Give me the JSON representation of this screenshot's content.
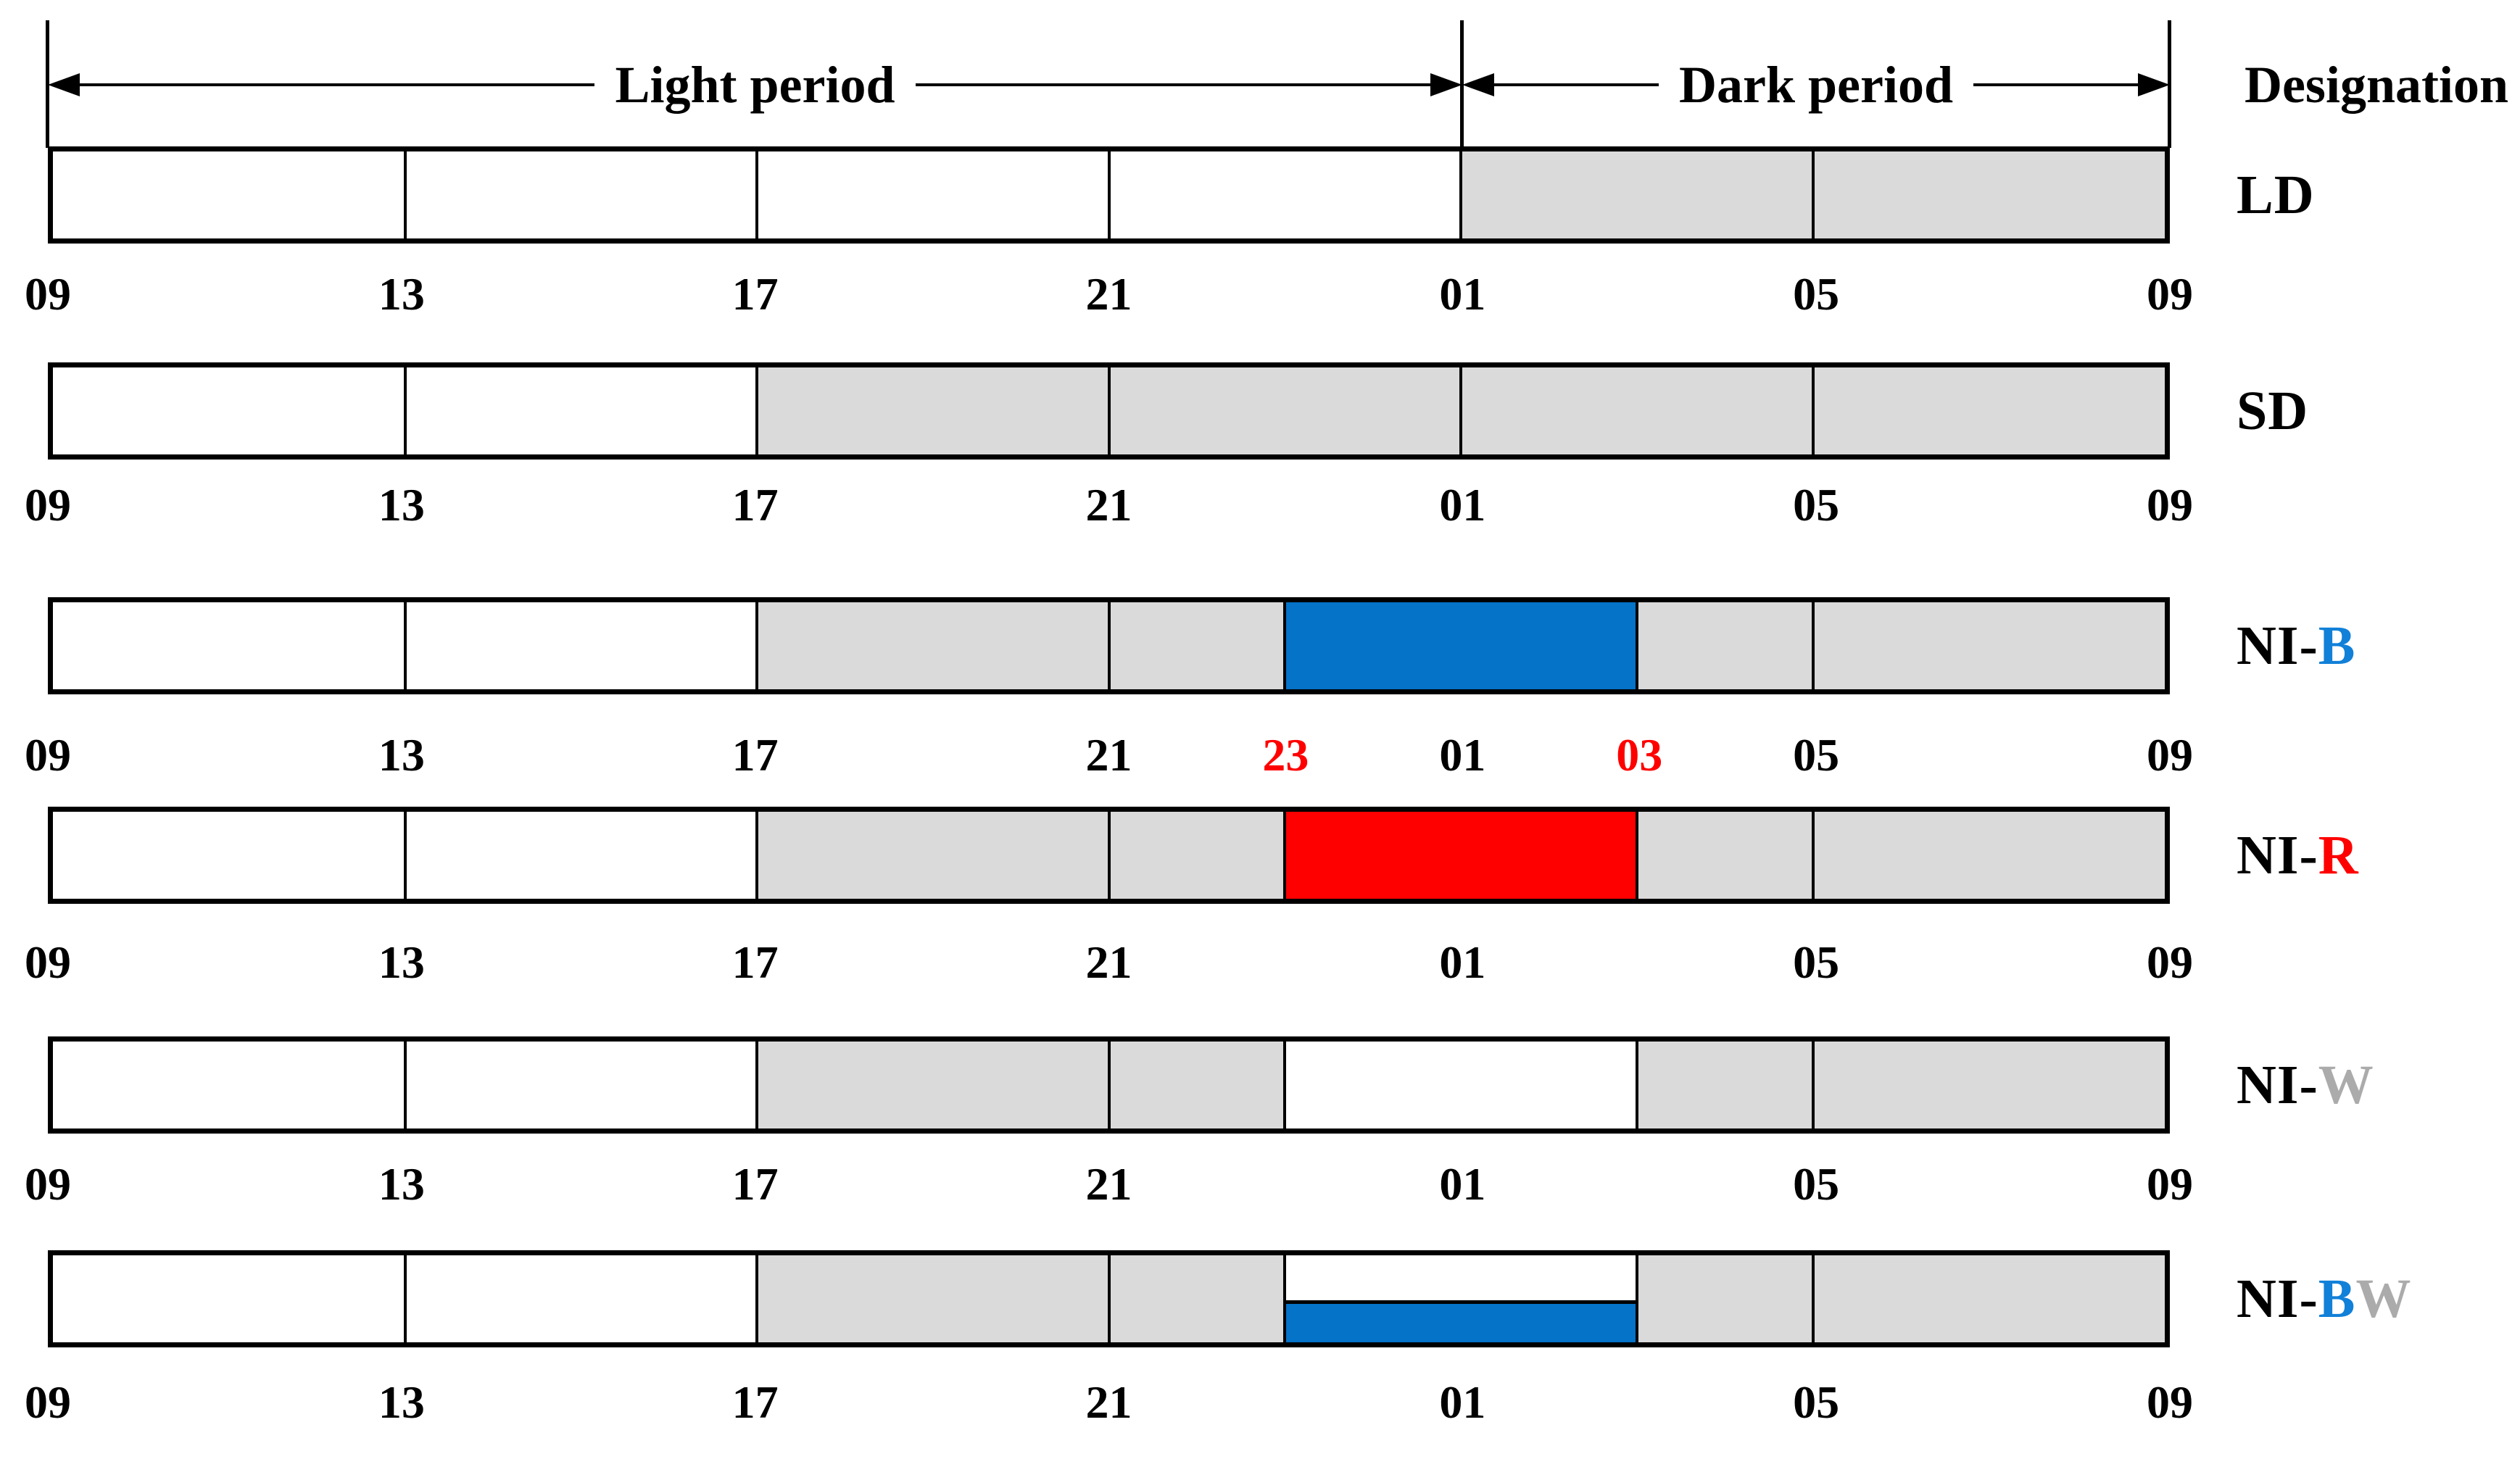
{
  "header": {
    "light_period_label": "Light period",
    "dark_period_label": "Dark period",
    "designation_label": "Designation"
  },
  "palette": {
    "fill_white": "#FFFFFF",
    "fill_gray": "#DADADA",
    "fill_blue": "#0473C8",
    "fill_red": "#FF0000",
    "split_top": "#FFFFFF",
    "split_bottom": "#0473C8",
    "text_black": "#000000",
    "text_blue": "#1180D8",
    "text_red": "#FF0000",
    "text_gray": "#ABABAB",
    "line_black": "#000000"
  },
  "axis": {
    "start_hour_label": "09",
    "total_hours": 24,
    "light_hours": 16
  },
  "rows": [
    {
      "name": "LD",
      "designation": [
        {
          "text": "LD",
          "color": "text_black"
        }
      ],
      "segments": [
        {
          "start": 0,
          "end": 4,
          "fill": "fill_white"
        },
        {
          "start": 4,
          "end": 8,
          "fill": "fill_white"
        },
        {
          "start": 8,
          "end": 12,
          "fill": "fill_white"
        },
        {
          "start": 12,
          "end": 16,
          "fill": "fill_white"
        },
        {
          "start": 16,
          "end": 20,
          "fill": "fill_gray"
        },
        {
          "start": 20,
          "end": 24,
          "fill": "fill_gray"
        }
      ],
      "ticks": [
        {
          "label": "09",
          "hour": 0,
          "color": "text_black"
        },
        {
          "label": "13",
          "hour": 4,
          "color": "text_black"
        },
        {
          "label": "17",
          "hour": 8,
          "color": "text_black"
        },
        {
          "label": "21",
          "hour": 12,
          "color": "text_black"
        },
        {
          "label": "01",
          "hour": 16,
          "color": "text_black"
        },
        {
          "label": "05",
          "hour": 20,
          "color": "text_black"
        },
        {
          "label": "09",
          "hour": 24,
          "color": "text_black"
        }
      ]
    },
    {
      "name": "SD",
      "designation": [
        {
          "text": "SD",
          "color": "text_black"
        }
      ],
      "segments": [
        {
          "start": 0,
          "end": 4,
          "fill": "fill_white"
        },
        {
          "start": 4,
          "end": 8,
          "fill": "fill_white"
        },
        {
          "start": 8,
          "end": 12,
          "fill": "fill_gray"
        },
        {
          "start": 12,
          "end": 16,
          "fill": "fill_gray"
        },
        {
          "start": 16,
          "end": 20,
          "fill": "fill_gray"
        },
        {
          "start": 20,
          "end": 24,
          "fill": "fill_gray"
        }
      ],
      "ticks": [
        {
          "label": "09",
          "hour": 0,
          "color": "text_black"
        },
        {
          "label": "13",
          "hour": 4,
          "color": "text_black"
        },
        {
          "label": "17",
          "hour": 8,
          "color": "text_black"
        },
        {
          "label": "21",
          "hour": 12,
          "color": "text_black"
        },
        {
          "label": "01",
          "hour": 16,
          "color": "text_black"
        },
        {
          "label": "05",
          "hour": 20,
          "color": "text_black"
        },
        {
          "label": "09",
          "hour": 24,
          "color": "text_black"
        }
      ]
    },
    {
      "name": "NI-B",
      "designation": [
        {
          "text": "NI-",
          "color": "text_black"
        },
        {
          "text": "B",
          "color": "text_blue"
        }
      ],
      "segments": [
        {
          "start": 0,
          "end": 4,
          "fill": "fill_white"
        },
        {
          "start": 4,
          "end": 8,
          "fill": "fill_white"
        },
        {
          "start": 8,
          "end": 12,
          "fill": "fill_gray"
        },
        {
          "start": 12,
          "end": 14,
          "fill": "fill_gray"
        },
        {
          "start": 14,
          "end": 18,
          "fill": "fill_blue"
        },
        {
          "start": 18,
          "end": 20,
          "fill": "fill_gray"
        },
        {
          "start": 20,
          "end": 24,
          "fill": "fill_gray"
        }
      ],
      "ticks": [
        {
          "label": "09",
          "hour": 0,
          "color": "text_black"
        },
        {
          "label": "13",
          "hour": 4,
          "color": "text_black"
        },
        {
          "label": "17",
          "hour": 8,
          "color": "text_black"
        },
        {
          "label": "21",
          "hour": 12,
          "color": "text_black"
        },
        {
          "label": "23",
          "hour": 14,
          "color": "text_red"
        },
        {
          "label": "01",
          "hour": 16,
          "color": "text_black"
        },
        {
          "label": "03",
          "hour": 18,
          "color": "text_red"
        },
        {
          "label": "05",
          "hour": 20,
          "color": "text_black"
        },
        {
          "label": "09",
          "hour": 24,
          "color": "text_black"
        }
      ]
    },
    {
      "name": "NI-R",
      "designation": [
        {
          "text": "NI-",
          "color": "text_black"
        },
        {
          "text": "R",
          "color": "text_red"
        }
      ],
      "segments": [
        {
          "start": 0,
          "end": 4,
          "fill": "fill_white"
        },
        {
          "start": 4,
          "end": 8,
          "fill": "fill_white"
        },
        {
          "start": 8,
          "end": 12,
          "fill": "fill_gray"
        },
        {
          "start": 12,
          "end": 14,
          "fill": "fill_gray"
        },
        {
          "start": 14,
          "end": 18,
          "fill": "fill_red"
        },
        {
          "start": 18,
          "end": 20,
          "fill": "fill_gray"
        },
        {
          "start": 20,
          "end": 24,
          "fill": "fill_gray"
        }
      ],
      "ticks": [
        {
          "label": "09",
          "hour": 0,
          "color": "text_black"
        },
        {
          "label": "13",
          "hour": 4,
          "color": "text_black"
        },
        {
          "label": "17",
          "hour": 8,
          "color": "text_black"
        },
        {
          "label": "21",
          "hour": 12,
          "color": "text_black"
        },
        {
          "label": "01",
          "hour": 16,
          "color": "text_black"
        },
        {
          "label": "05",
          "hour": 20,
          "color": "text_black"
        },
        {
          "label": "09",
          "hour": 24,
          "color": "text_black"
        }
      ]
    },
    {
      "name": "NI-W",
      "designation": [
        {
          "text": "NI-",
          "color": "text_black"
        },
        {
          "text": "W",
          "color": "text_gray"
        }
      ],
      "segments": [
        {
          "start": 0,
          "end": 4,
          "fill": "fill_white"
        },
        {
          "start": 4,
          "end": 8,
          "fill": "fill_white"
        },
        {
          "start": 8,
          "end": 12,
          "fill": "fill_gray"
        },
        {
          "start": 12,
          "end": 14,
          "fill": "fill_gray"
        },
        {
          "start": 14,
          "end": 18,
          "fill": "fill_white"
        },
        {
          "start": 18,
          "end": 20,
          "fill": "fill_gray"
        },
        {
          "start": 20,
          "end": 24,
          "fill": "fill_gray"
        }
      ],
      "ticks": [
        {
          "label": "09",
          "hour": 0,
          "color": "text_black"
        },
        {
          "label": "13",
          "hour": 4,
          "color": "text_black"
        },
        {
          "label": "17",
          "hour": 8,
          "color": "text_black"
        },
        {
          "label": "21",
          "hour": 12,
          "color": "text_black"
        },
        {
          "label": "01",
          "hour": 16,
          "color": "text_black"
        },
        {
          "label": "05",
          "hour": 20,
          "color": "text_black"
        },
        {
          "label": "09",
          "hour": 24,
          "color": "text_black"
        }
      ]
    },
    {
      "name": "NI-BW",
      "designation": [
        {
          "text": "NI-",
          "color": "text_black"
        },
        {
          "text": "B",
          "color": "text_blue"
        },
        {
          "text": "W",
          "color": "text_gray"
        }
      ],
      "segments": [
        {
          "start": 0,
          "end": 4,
          "fill": "fill_white"
        },
        {
          "start": 4,
          "end": 8,
          "fill": "fill_white"
        },
        {
          "start": 8,
          "end": 12,
          "fill": "fill_gray"
        },
        {
          "start": 12,
          "end": 14,
          "fill": "fill_gray"
        },
        {
          "start": 14,
          "end": 18,
          "fill": "split_white_blue"
        },
        {
          "start": 18,
          "end": 20,
          "fill": "fill_gray"
        },
        {
          "start": 20,
          "end": 24,
          "fill": "fill_gray"
        }
      ],
      "ticks": [
        {
          "label": "09",
          "hour": 0,
          "color": "text_black"
        },
        {
          "label": "13",
          "hour": 4,
          "color": "text_black"
        },
        {
          "label": "17",
          "hour": 8,
          "color": "text_black"
        },
        {
          "label": "21",
          "hour": 12,
          "color": "text_black"
        },
        {
          "label": "01",
          "hour": 16,
          "color": "text_black"
        },
        {
          "label": "05",
          "hour": 20,
          "color": "text_black"
        },
        {
          "label": "09",
          "hour": 24,
          "color": "text_black"
        }
      ]
    }
  ]
}
